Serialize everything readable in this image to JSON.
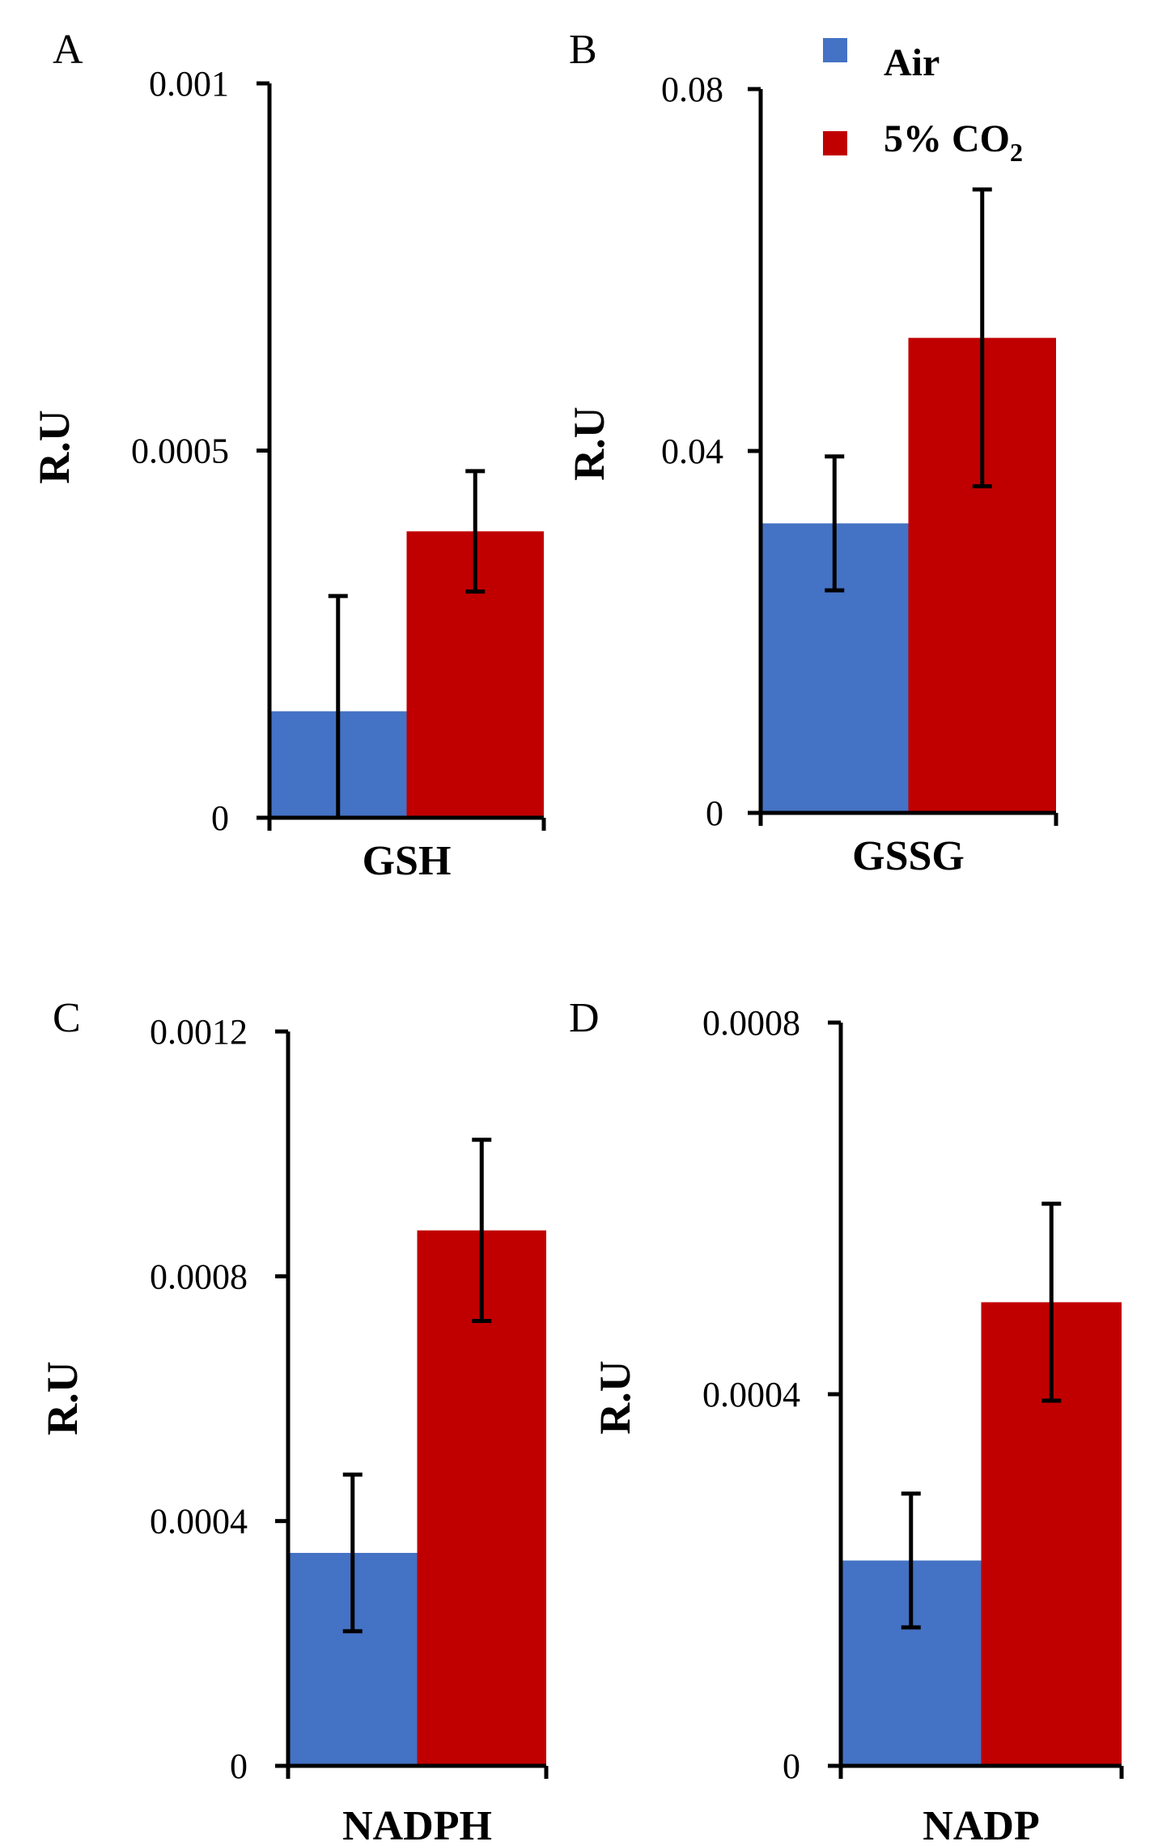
{
  "legend": {
    "items": [
      {
        "label": "Air",
        "color": "#4472C4"
      },
      {
        "label": "5% CO",
        "subscript": "2",
        "color": "#C00000"
      }
    ]
  },
  "chart_data": [
    {
      "type": "bar",
      "panel": "A",
      "ylabel": "R.U",
      "categories": [
        "GSH"
      ],
      "ylim": [
        0,
        0.001
      ],
      "yticks": [
        0,
        0.0005,
        0.001
      ],
      "ytick_labels": [
        "0",
        "0.0005",
        "0.001"
      ],
      "series": [
        {
          "name": "Air",
          "values": [
            0.000145
          ],
          "error": [
            0.000157
          ]
        },
        {
          "name": "5% CO2",
          "values": [
            0.00039
          ],
          "error": [
            8.2e-05
          ]
        }
      ]
    },
    {
      "type": "bar",
      "panel": "B",
      "ylabel": "R.U",
      "categories": [
        "GSSG"
      ],
      "ylim": [
        0,
        0.08
      ],
      "yticks": [
        0,
        0.04,
        0.08
      ],
      "ytick_labels": [
        "0",
        "0.04",
        "0.08"
      ],
      "series": [
        {
          "name": "Air",
          "values": [
            0.032
          ],
          "error": [
            0.0074
          ]
        },
        {
          "name": "5% CO2",
          "values": [
            0.0525
          ],
          "error": [
            0.0164
          ]
        }
      ]
    },
    {
      "type": "bar",
      "panel": "C",
      "ylabel": "R.U",
      "categories": [
        "NADPH"
      ],
      "ylim": [
        0,
        0.0012
      ],
      "yticks": [
        0,
        0.0004,
        0.0008,
        0.0012
      ],
      "ytick_labels": [
        "0",
        "0.0004",
        "0.0008",
        "0.0012"
      ],
      "series": [
        {
          "name": "Air",
          "values": [
            0.000348
          ],
          "error": [
            0.000128
          ]
        },
        {
          "name": "5% CO2",
          "values": [
            0.000875
          ],
          "error": [
            0.000148
          ]
        }
      ]
    },
    {
      "type": "bar",
      "panel": "D",
      "ylabel": "R.U",
      "categories": [
        "NADP"
      ],
      "ylim": [
        0,
        0.0008
      ],
      "yticks": [
        0,
        0.0004,
        0.0008
      ],
      "ytick_labels": [
        "0",
        "0.0004",
        "0.0008"
      ],
      "series": [
        {
          "name": "Air",
          "values": [
            0.000221
          ],
          "error": [
            7.2e-05
          ]
        },
        {
          "name": "5% CO2",
          "values": [
            0.000499
          ],
          "error": [
            0.000106
          ]
        }
      ]
    }
  ]
}
